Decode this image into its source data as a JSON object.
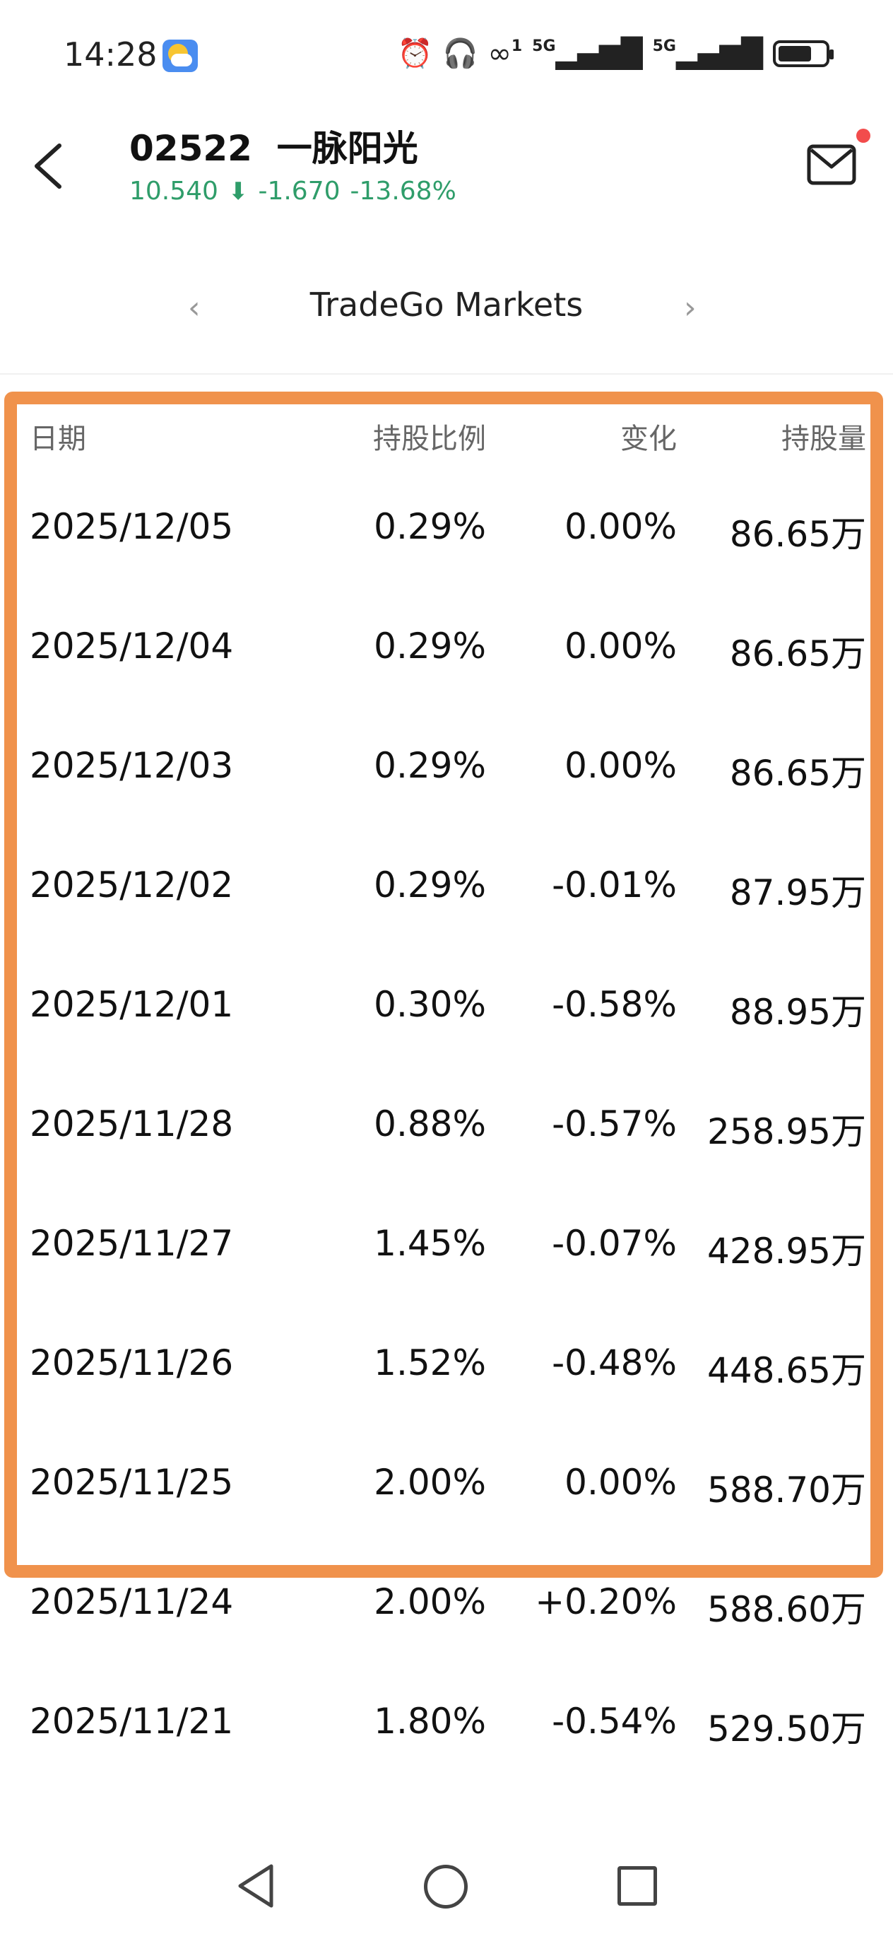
{
  "status_bar": {
    "time": "14:28",
    "icons": [
      "weather-icon",
      "alarm-icon",
      "headphones-icon",
      "link-icon",
      "signal-5g-icon",
      "signal-5g-icon",
      "battery-icon"
    ],
    "sig1": "5G",
    "sig2": "5G",
    "sim_index": "1"
  },
  "header": {
    "code": "02522",
    "name": "一脉阳光",
    "price": "10.540",
    "change": "-1.670",
    "change_pct": "-13.68%",
    "quote_color": "#2f9d6a",
    "notification_dot_color": "#f24c4c"
  },
  "broker_nav": {
    "broker_name": "TradeGo Markets",
    "prev_icon": "chevron-left-icon",
    "next_icon": "chevron-right-icon"
  },
  "table": {
    "headers": {
      "date": "日期",
      "ratio": "持股比例",
      "change": "变化",
      "shares": "持股量"
    },
    "rows": [
      {
        "date": "2025/12/05",
        "ratio": "0.29%",
        "change": "0.00%",
        "shares": "86.65万"
      },
      {
        "date": "2025/12/04",
        "ratio": "0.29%",
        "change": "0.00%",
        "shares": "86.65万"
      },
      {
        "date": "2025/12/03",
        "ratio": "0.29%",
        "change": "0.00%",
        "shares": "86.65万"
      },
      {
        "date": "2025/12/02",
        "ratio": "0.29%",
        "change": "-0.01%",
        "shares": "87.95万"
      },
      {
        "date": "2025/12/01",
        "ratio": "0.30%",
        "change": "-0.58%",
        "shares": "88.95万"
      },
      {
        "date": "2025/11/28",
        "ratio": "0.88%",
        "change": "-0.57%",
        "shares": "258.95万"
      },
      {
        "date": "2025/11/27",
        "ratio": "1.45%",
        "change": "-0.07%",
        "shares": "428.95万"
      },
      {
        "date": "2025/11/26",
        "ratio": "1.52%",
        "change": "-0.48%",
        "shares": "448.65万"
      },
      {
        "date": "2025/11/25",
        "ratio": "2.00%",
        "change": "0.00%",
        "shares": "588.70万"
      },
      {
        "date": "2025/11/24",
        "ratio": "2.00%",
        "change": "+0.20%",
        "shares": "588.60万"
      },
      {
        "date": "2025/11/21",
        "ratio": "1.80%",
        "change": "-0.54%",
        "shares": "529.50万"
      }
    ],
    "highlight_color": "#f0924c"
  },
  "nav_bar": {
    "icons": [
      "nav-back-icon",
      "nav-home-icon",
      "nav-recent-icon"
    ]
  }
}
